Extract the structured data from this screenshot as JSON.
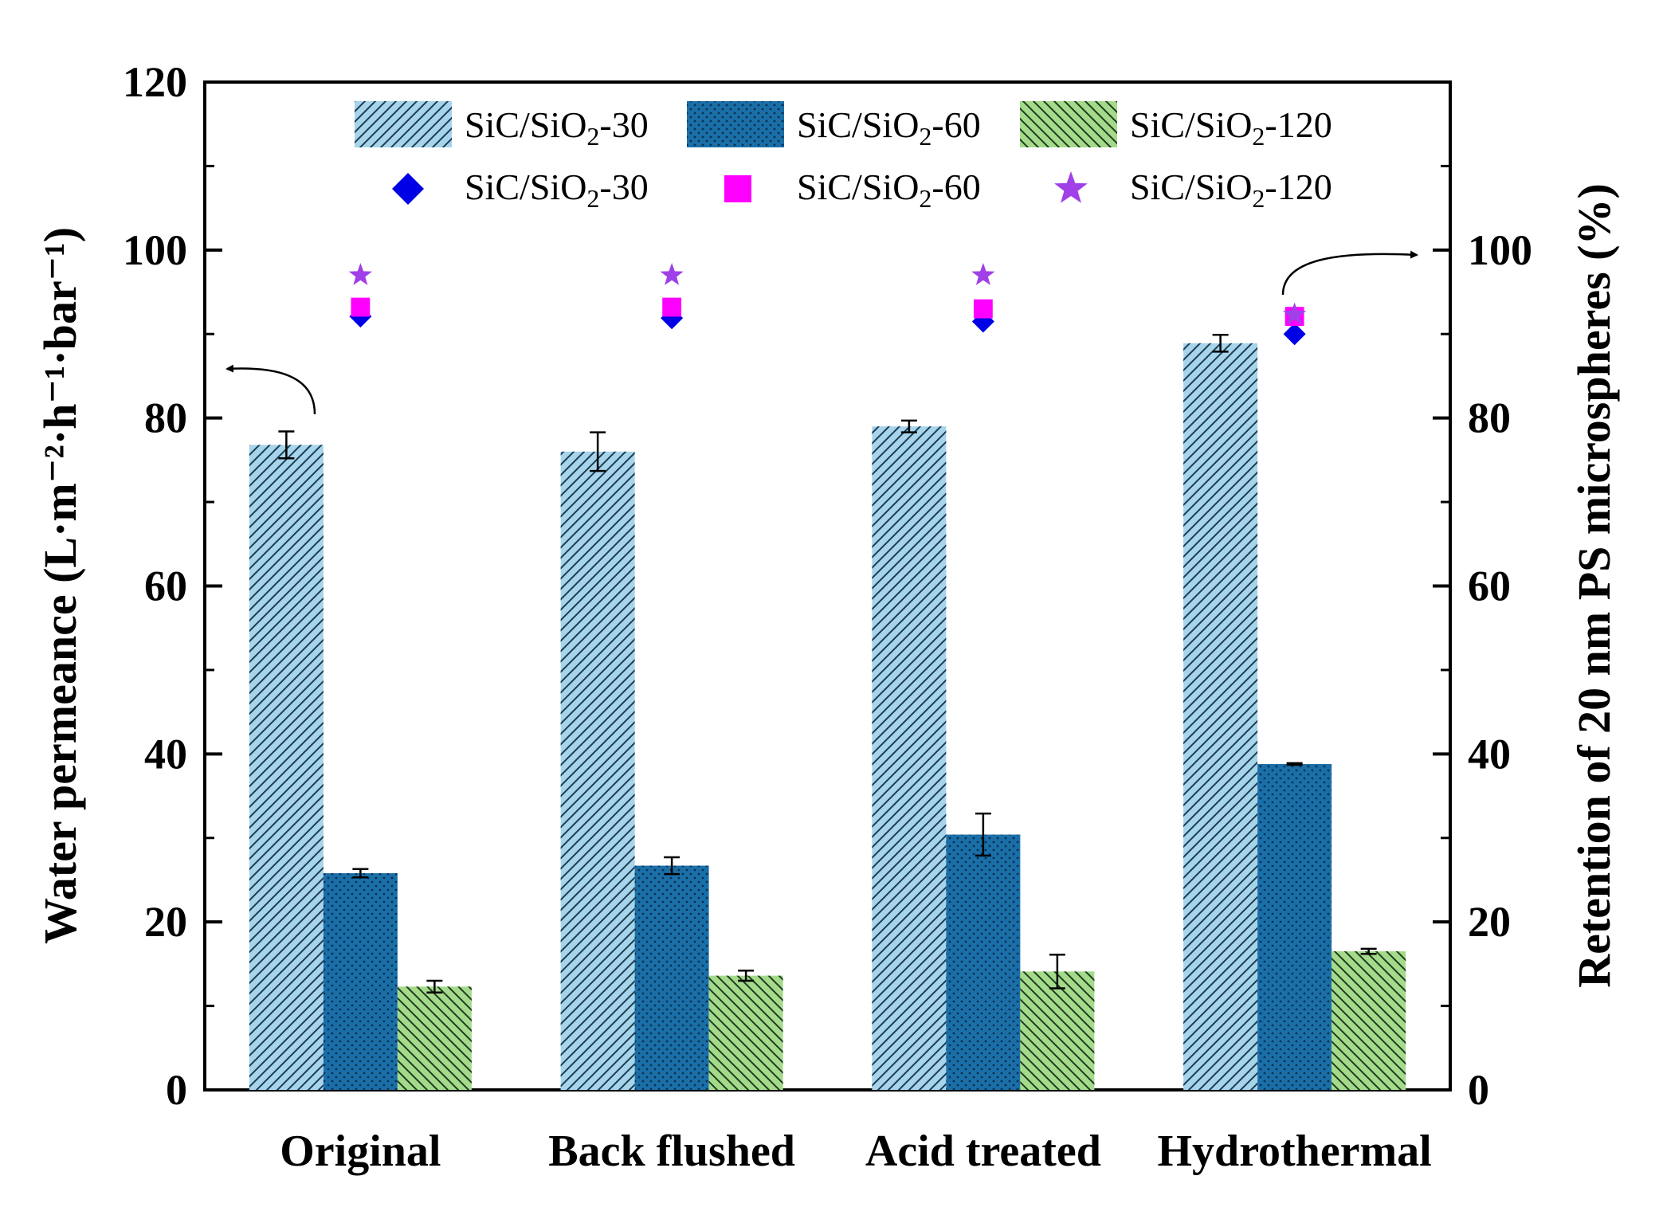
{
  "chart_data": {
    "type": "bar",
    "categories": [
      "Original",
      "Back flushed",
      "Acid treated",
      "Hydrothermal"
    ],
    "ylabel_left": "Water permeance (L·m⁻²·h⁻¹·bar⁻¹)",
    "ylabel_right": "Retention of 20 nm PS microspheres (%)",
    "ylim_left": [
      0,
      120
    ],
    "ylim_right": [
      0,
      120
    ],
    "left_ticks": [
      0,
      20,
      40,
      60,
      80,
      100,
      120
    ],
    "right_ticks": [
      0,
      20,
      40,
      60,
      80,
      100
    ],
    "bar_series": [
      {
        "name": "SiC/SiO2-30",
        "label_base": "SiC/SiO",
        "label_sub": "2",
        "label_tail": "-30",
        "color": "#a6d4ea",
        "pattern": "diag-right",
        "values": [
          76.8,
          76.0,
          79.0,
          88.9
        ],
        "errors": [
          1.6,
          2.3,
          0.7,
          1.0
        ]
      },
      {
        "name": "SiC/SiO2-60",
        "label_base": "SiC/SiO",
        "label_sub": "2",
        "label_tail": "-60",
        "color": "#1a6fa9",
        "pattern": "dots",
        "values": [
          25.8,
          26.7,
          30.4,
          38.8
        ],
        "errors": [
          0.5,
          1.0,
          2.5,
          0.1
        ]
      },
      {
        "name": "SiC/SiO2-120",
        "label_base": "SiC/SiO",
        "label_sub": "2",
        "label_tail": "-120",
        "color": "#a4db8a",
        "pattern": "diag-left",
        "values": [
          12.3,
          13.6,
          14.1,
          16.5
        ],
        "errors": [
          0.7,
          0.6,
          2.0,
          0.3
        ]
      }
    ],
    "point_series": [
      {
        "name": "SiC/SiO2-30",
        "label_base": "SiC/SiO",
        "label_sub": "2",
        "label_tail": "-30",
        "marker": "diamond",
        "color": "#0000e6",
        "values": [
          92.1,
          91.9,
          91.5,
          90.0
        ]
      },
      {
        "name": "SiC/SiO2-60",
        "label_base": "SiC/SiO",
        "label_sub": "2",
        "label_tail": "-60",
        "marker": "square",
        "color": "#ff00ff",
        "values": [
          93.2,
          93.2,
          93.0,
          92.1
        ]
      },
      {
        "name": "SiC/SiO2-120",
        "label_base": "SiC/SiO",
        "label_sub": "2",
        "label_tail": "-120",
        "marker": "star",
        "color": "#a040e8",
        "values": [
          97.0,
          97.0,
          97.0,
          92.3
        ]
      }
    ],
    "legend_position": "top-center",
    "annotations": [
      "arrow near Original bars pointing to left axis",
      "arrow near Hydrothermal markers pointing to right axis"
    ]
  }
}
